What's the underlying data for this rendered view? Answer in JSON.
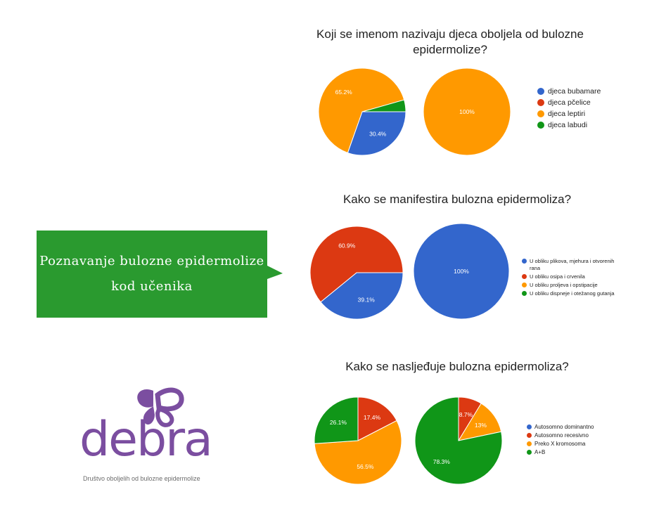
{
  "banner": {
    "line1": "Poznavanje bulozne epidermolize",
    "line2": "kod učenika"
  },
  "logo": {
    "word": "debra",
    "tagline": "Društvo oboljelih od bulozne epidermolize",
    "color": "#7b4ea0"
  },
  "chart_data": [
    {
      "type": "pie",
      "title": "Koji se imenom nazivaju djeca oboljela od bulozne epidermolize?",
      "categories": [
        "djeca bubamare",
        "djeca pčelice",
        "djeca leptiri",
        "djeca labudi"
      ],
      "colors": [
        "#3366cc",
        "#dc3912",
        "#ff9900",
        "#109618"
      ],
      "legend": "right",
      "pies": [
        {
          "values": [
            30.4,
            0,
            65.2,
            4.4
          ],
          "labels": [
            "30.4%",
            "",
            "65.2%",
            ""
          ]
        },
        {
          "values": [
            0,
            0,
            100,
            0
          ],
          "labels": [
            "",
            "",
            "100%",
            ""
          ]
        }
      ]
    },
    {
      "type": "pie",
      "title": "Kako se manifestira bulozna epidermoliza?",
      "categories": [
        "U obliku plikova, mjehura i otvorenih rana",
        "U obliku osipa i crvenila",
        "U obliku proljeva i opstipacije",
        "U obliku dispneje i otežanog gutanja"
      ],
      "colors": [
        "#3366cc",
        "#dc3912",
        "#ff9900",
        "#109618"
      ],
      "legend": "right",
      "pies": [
        {
          "values": [
            39.1,
            60.9,
            0,
            0
          ],
          "labels": [
            "39.1%",
            "60.9%",
            "",
            ""
          ]
        },
        {
          "values": [
            100,
            0,
            0,
            0
          ],
          "labels": [
            "100%",
            "",
            "",
            ""
          ]
        }
      ]
    },
    {
      "type": "pie",
      "title": "Kako se nasljeđuje bulozna epidermoliza?",
      "categories": [
        "Autosomno dominantno",
        "Autosomno recesivno",
        "Preko X kromosoma",
        "A+B"
      ],
      "colors": [
        "#3366cc",
        "#dc3912",
        "#ff9900",
        "#109618"
      ],
      "legend": "right",
      "pies": [
        {
          "values": [
            0,
            17.4,
            56.5,
            26.1
          ],
          "labels": [
            "",
            "17.4%",
            "56.5%",
            "26.1%"
          ]
        },
        {
          "values": [
            0,
            8.7,
            13,
            78.3
          ],
          "labels": [
            "",
            "8.7%",
            "13%",
            "78.3%"
          ]
        }
      ]
    }
  ]
}
